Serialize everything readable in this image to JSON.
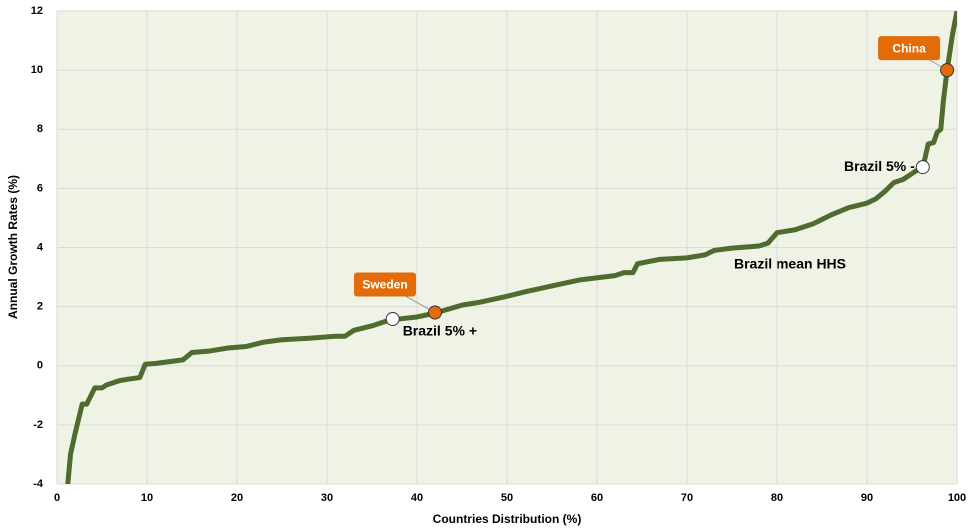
{
  "chart_data": {
    "type": "line",
    "xlabel": "Countries Distribution (%)",
    "ylabel": "Annual Growth Rates  (%)",
    "color": "#4f6b2e",
    "x": [
      1.2,
      1.5,
      2,
      2.8,
      3.3,
      4.2,
      5,
      5.5,
      7,
      8,
      9.2,
      9.8,
      11,
      14,
      15,
      17,
      19,
      21,
      23,
      25,
      28,
      31,
      32,
      33,
      35,
      37,
      40,
      42,
      45,
      47,
      50,
      52,
      55,
      58,
      62,
      63,
      64,
      64.5,
      67,
      70,
      72,
      73,
      75,
      78,
      79,
      80,
      82,
      84,
      86,
      88,
      90,
      91,
      92,
      93,
      94,
      95,
      95.5,
      96.2,
      96.8,
      97.4,
      97.8,
      98.2,
      98.5,
      98.9,
      99.5,
      100
    ],
    "values": [
      -4,
      -3,
      -2.3,
      -1.3,
      -1.3,
      -0.75,
      -0.75,
      -0.65,
      -0.5,
      -0.45,
      -0.4,
      0.05,
      0.08,
      0.2,
      0.45,
      0.5,
      0.6,
      0.65,
      0.8,
      0.88,
      0.93,
      1.0,
      1.0,
      1.2,
      1.35,
      1.55,
      1.65,
      1.78,
      2.05,
      2.15,
      2.35,
      2.5,
      2.7,
      2.9,
      3.05,
      3.15,
      3.15,
      3.45,
      3.6,
      3.65,
      3.75,
      3.9,
      3.98,
      4.05,
      4.15,
      4.5,
      4.6,
      4.8,
      5.1,
      5.35,
      5.5,
      5.65,
      5.9,
      6.2,
      6.3,
      6.5,
      6.6,
      6.7,
      7.5,
      7.55,
      7.9,
      8.0,
      9.0,
      10.0,
      11.2,
      12
    ],
    "markers": [
      {
        "label": "Brazil 5% +",
        "x": 37.3,
        "y": 1.58,
        "color": "#ffffff"
      },
      {
        "label": "Sweden",
        "x": 42,
        "y": 1.8,
        "color": "#e36c09"
      },
      {
        "label": "Brazil 5% -",
        "x": 96.2,
        "y": 6.72,
        "color": "#ffffff"
      },
      {
        "label": "China",
        "x": 98.9,
        "y": 10,
        "color": "#e36c09"
      }
    ],
    "annotation": "Brazil mean HHS",
    "xlim": [
      0,
      100
    ],
    "xticks": [
      0,
      10,
      20,
      30,
      40,
      50,
      60,
      70,
      80,
      90,
      100
    ],
    "ylim": [
      -4,
      12
    ],
    "yticks": [
      -4,
      -2,
      0,
      2,
      4,
      6,
      8,
      10,
      12
    ],
    "grid": true
  }
}
